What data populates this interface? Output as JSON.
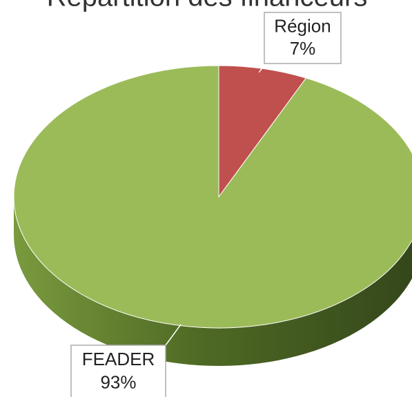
{
  "chart_data": {
    "type": "pie",
    "title": "Répartition des financeurs",
    "categories": [
      "Région",
      "FEADER"
    ],
    "values": [
      7,
      93
    ],
    "value_labels": [
      "7%",
      "93%"
    ],
    "colors": [
      "#c0504d",
      "#9bbb59"
    ]
  }
}
